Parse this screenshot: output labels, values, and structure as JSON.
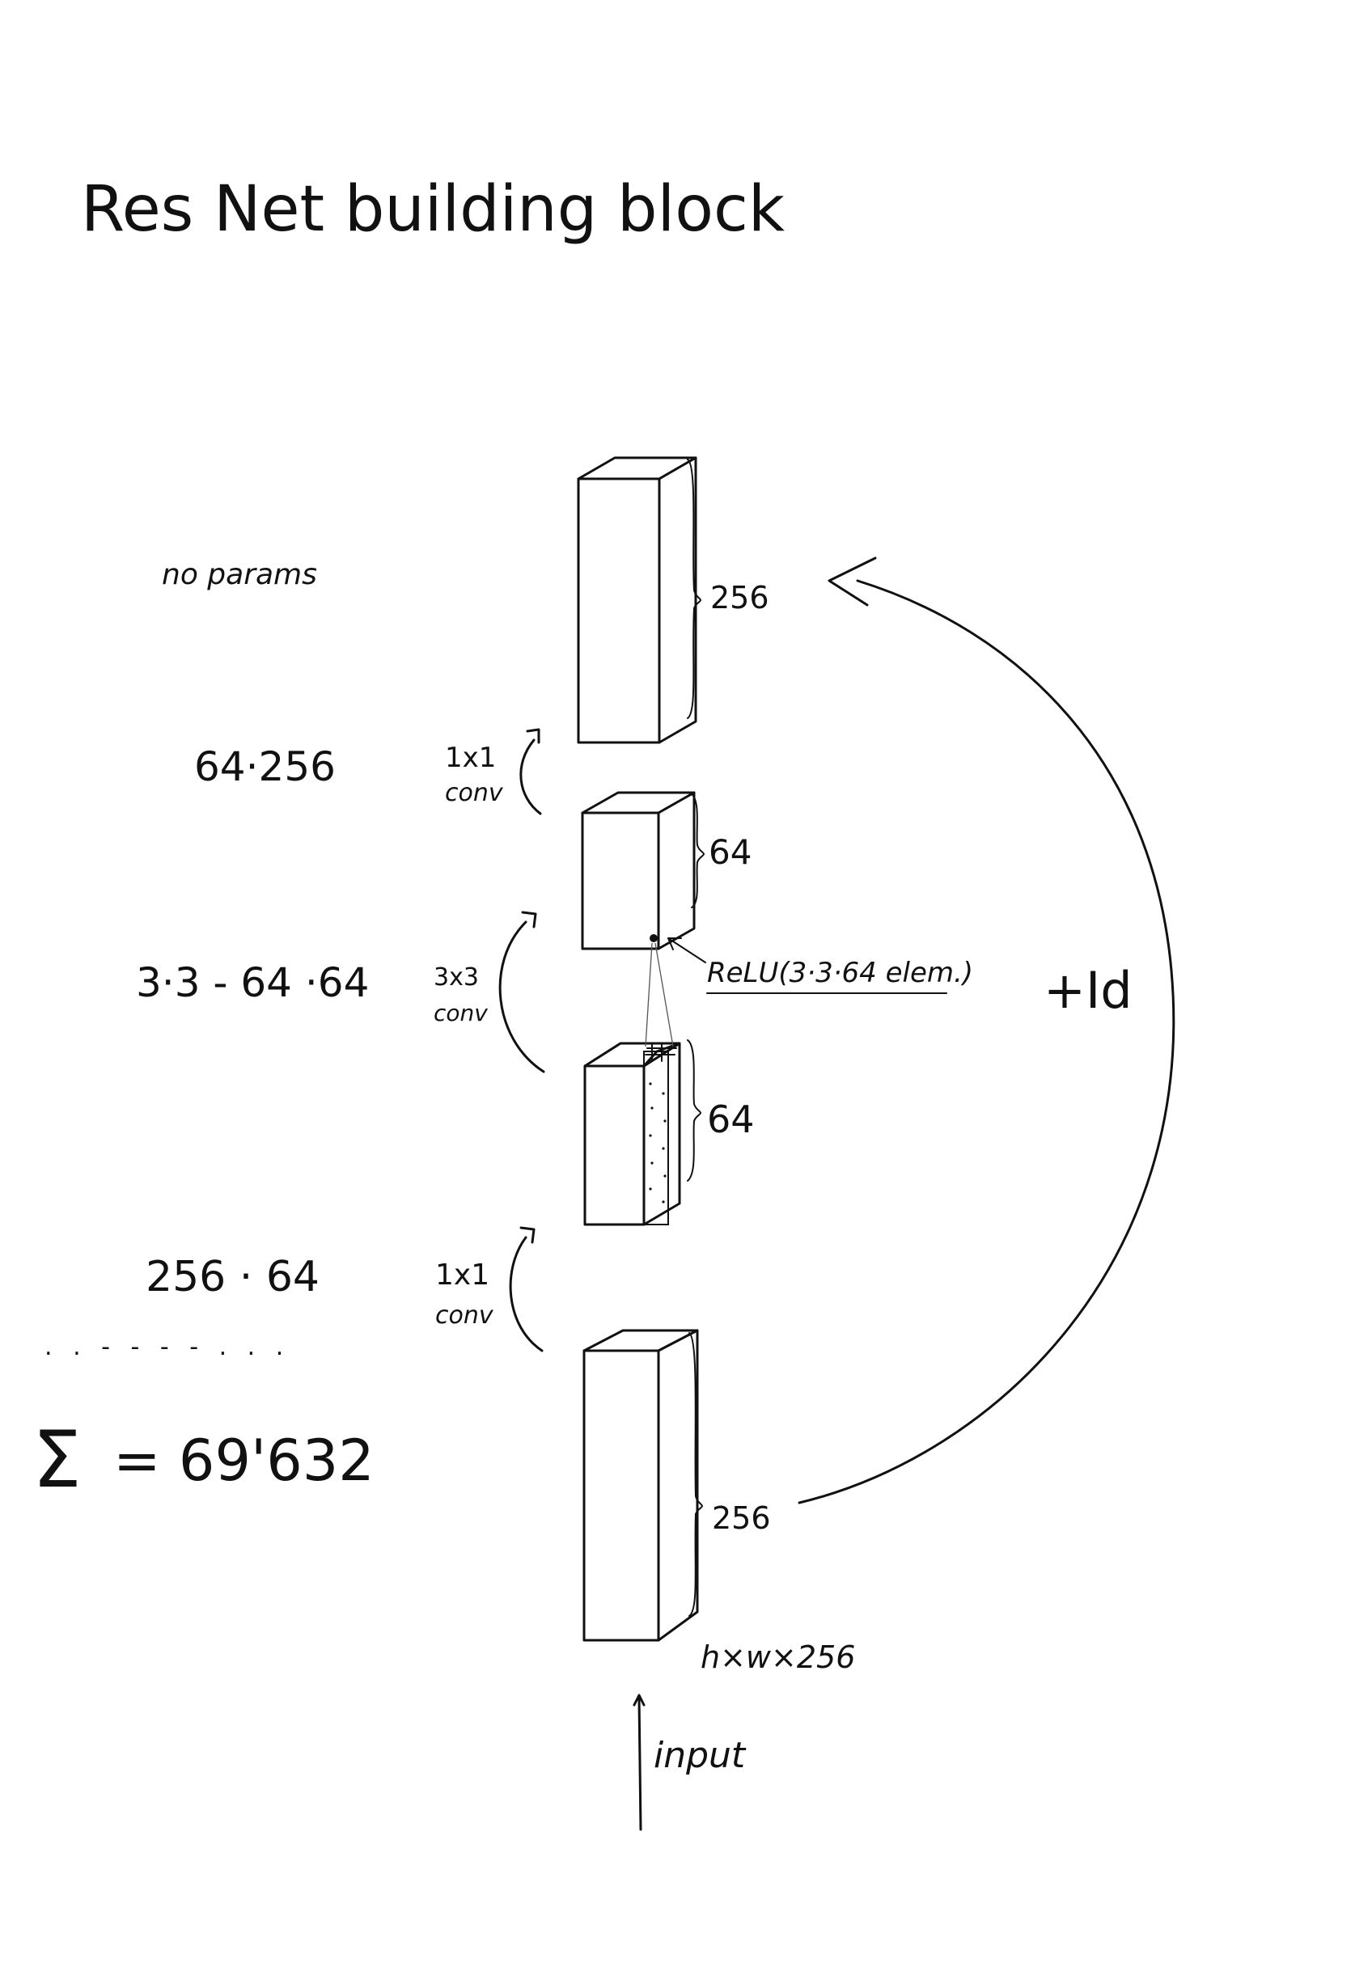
{
  "title": "Res Net   building block",
  "blocks": [
    {
      "id": "top",
      "channels": "256"
    },
    {
      "id": "mid-upper",
      "channels": "64"
    },
    {
      "id": "mid-lower",
      "channels": "64"
    },
    {
      "id": "bottom",
      "channels": "256"
    }
  ],
  "layers": [
    {
      "id": "conv1x1-top",
      "label_line1": "1x1",
      "label_line2": "conv"
    },
    {
      "id": "conv3x3",
      "label_line1": "3x3",
      "label_line2": "conv"
    },
    {
      "id": "conv1x1-bottom",
      "label_line1": "1x1",
      "label_line2": "conv"
    }
  ],
  "params": {
    "none": "no params",
    "conv1x1_top": "64·256",
    "conv3x3": "3·3 - 64 ·64",
    "conv1x1_bottom": "256 · 64",
    "separator": ". . - - - - . . .",
    "sum_symbol": "Σ",
    "sum_text": "= 69'632"
  },
  "annotations": {
    "relu": "ReLU(3·3·64 elem.)",
    "identity": "+Id",
    "input_shape": "h×w×256",
    "input": "input"
  }
}
